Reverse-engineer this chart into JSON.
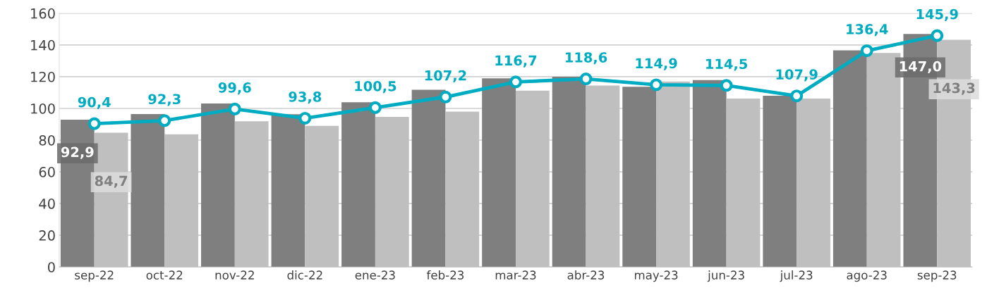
{
  "chart_data": {
    "type": "bar",
    "categories": [
      "sep-22",
      "oct-22",
      "nov-22",
      "dic-22",
      "ene-23",
      "feb-23",
      "mar-23",
      "abr-23",
      "may-23",
      "jun-23",
      "jul-23",
      "ago-23",
      "sep-23"
    ],
    "series": [
      {
        "color": "#7f7f7f",
        "values": [
          92.9,
          96.4,
          103.1,
          96.3,
          103.9,
          111.8,
          119.0,
          120.0,
          113.6,
          117.9,
          108.0,
          136.6,
          147.0
        ],
        "value_labels": [
          "92,9",
          null,
          null,
          null,
          null,
          null,
          null,
          null,
          null,
          null,
          null,
          null,
          "147,0"
        ]
      },
      {
        "color": "#bfbfbf",
        "values": [
          84.7,
          83.7,
          91.9,
          89.0,
          94.7,
          98.0,
          111.2,
          114.4,
          117.0,
          106.2,
          106.2,
          135.0,
          143.3
        ],
        "value_labels": [
          "84,7",
          null,
          null,
          null,
          null,
          null,
          null,
          null,
          null,
          null,
          null,
          null,
          "143,3"
        ]
      },
      {
        "type": "line",
        "color": "#00acc1",
        "marker": "circle",
        "values": [
          90.4,
          92.3,
          99.6,
          93.8,
          100.5,
          107.2,
          116.7,
          118.6,
          114.9,
          114.5,
          107.9,
          136.4,
          145.9
        ],
        "value_labels": [
          "90,4",
          "92,3",
          "99,6",
          "93,8",
          "100,5",
          "107,2",
          "116,7",
          "118,6",
          "114,9",
          "114,5",
          "107,9",
          "136,4",
          "145,9"
        ]
      }
    ],
    "ylim": [
      0,
      160
    ],
    "yticks": [
      0,
      20,
      40,
      60,
      80,
      100,
      120,
      140,
      160
    ],
    "grid": "y",
    "legend": false
  }
}
